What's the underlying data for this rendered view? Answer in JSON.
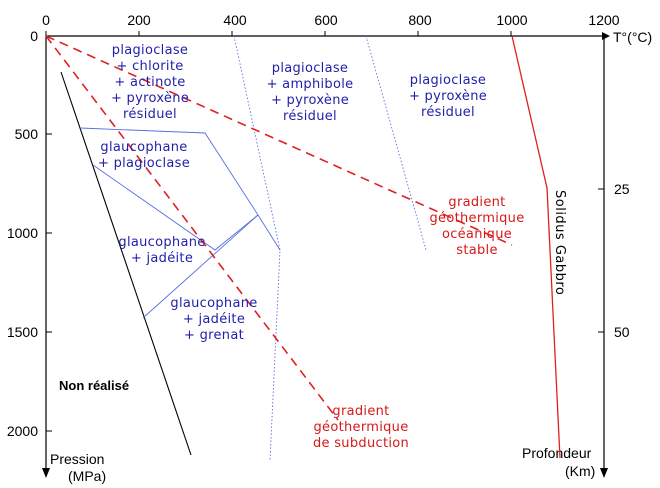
{
  "axes": {
    "temperature_ticks": [
      "0",
      "200",
      "400",
      "600",
      "800",
      "1000",
      "1200"
    ],
    "temperature_unit": "T°(°C)",
    "pressure_ticks": [
      "500",
      "1000",
      "1500",
      "2000"
    ],
    "pressure_origin": "0",
    "pressure_label": [
      "Pression",
      "(MPa)"
    ],
    "depth_ticks": [
      "25",
      "50"
    ],
    "depth_label": [
      "Profondeur",
      "(Km)"
    ]
  },
  "facies": {
    "f1": [
      "plagioclase",
      "+ chlorite",
      "+ actinote",
      "+ pyroxène",
      "résiduel"
    ],
    "f2": [
      "plagioclase",
      "+ amphibole",
      "+ pyroxène",
      "résiduel"
    ],
    "f3": [
      "plagioclase",
      "+ pyroxène",
      "résiduel"
    ],
    "f4": [
      "glaucophane",
      "+ plagioclase"
    ],
    "f5": [
      "glaucophane",
      "+ jadéite"
    ],
    "f6": [
      "glaucophane",
      "+ jadéite",
      "+ grenat"
    ]
  },
  "gradients": {
    "oceanic": [
      "gradient",
      "géothermique",
      "océanique",
      "stable"
    ],
    "subduction": [
      "gradient",
      "géothermique",
      "de subduction"
    ]
  },
  "labels": {
    "non_realise": "Non réalisé",
    "solidus": "Solidus Gabbro"
  },
  "colors": {
    "facies_text": "#1f1fa8",
    "facies_lines": "#5a6ee0",
    "gradient": "#e02020",
    "solidus_line": "#e02020",
    "axis": "#000000"
  }
}
